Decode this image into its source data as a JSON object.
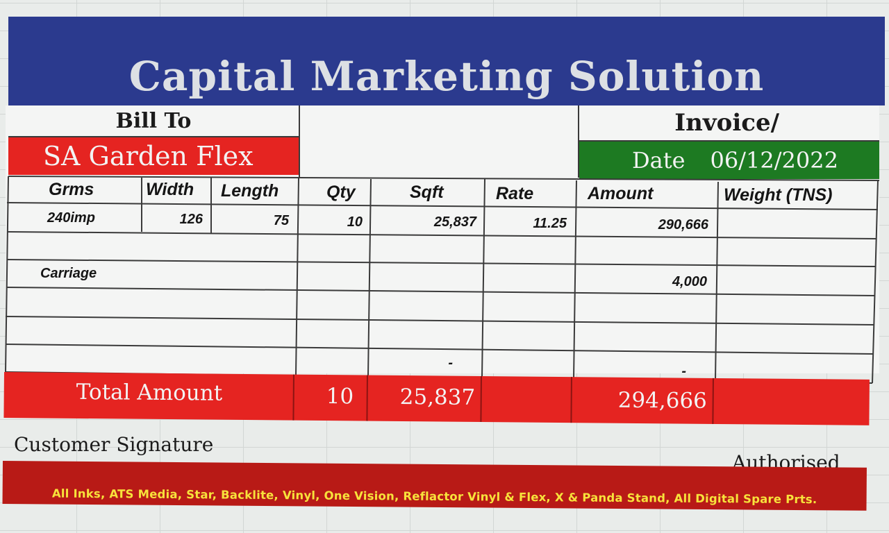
{
  "company": {
    "name": "Capital Marketing Solution"
  },
  "bill_to": {
    "label": "Bill To",
    "customer": "SA Garden Flex"
  },
  "invoice": {
    "label": "Invoice/",
    "date_label": "Date",
    "date_value": "06/12/2022"
  },
  "table": {
    "headers": [
      "Grms",
      "Width",
      "Length",
      "Qty",
      "Sqft",
      "Rate",
      "Amount",
      "Weight (TNS)"
    ],
    "rows": [
      {
        "grms": "240imp",
        "width": "126",
        "length": "75",
        "qty": "10",
        "sqft": "25,837",
        "rate": "11.25",
        "amount": "290,666",
        "weight": ""
      },
      {
        "desc": "Carriage",
        "amount": "4,000"
      }
    ],
    "dash_sqft": "-",
    "dash_amount": "-"
  },
  "total": {
    "label": "Total Amount",
    "qty": "10",
    "sqft": "25,837",
    "amount": "294,666"
  },
  "signatures": {
    "customer": "Customer Signature",
    "authorised": "Authorised"
  },
  "footer": {
    "products": "All Inks, ATS Media,  Star, Backlite, Vinyl, One Vision, Reflactor Vinyl & Flex, X & Panda Stand, All Digital Spare Prts."
  },
  "colors": {
    "banner": "#2b3a8e",
    "red": "#e52421",
    "green": "#1d7a22",
    "footer": "#b81a16",
    "footer_text": "#f7e23b"
  }
}
